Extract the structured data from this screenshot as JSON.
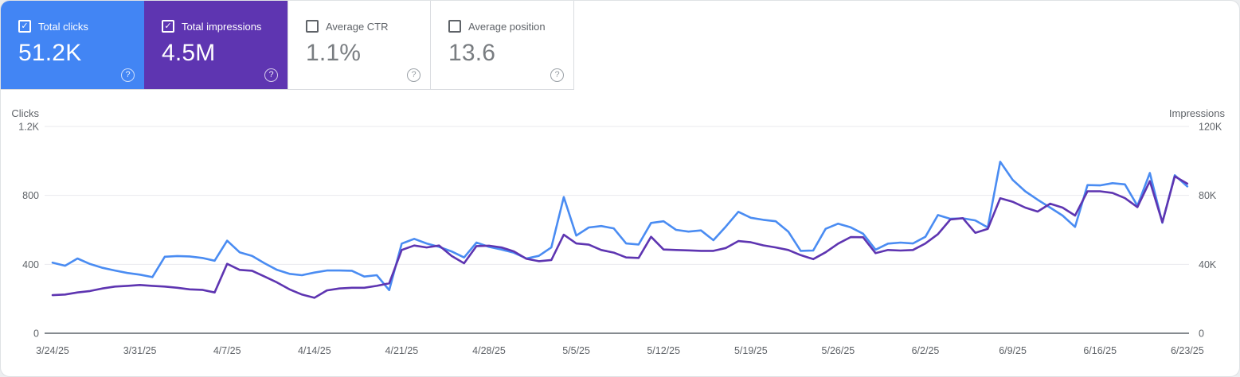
{
  "icons": {
    "help": "?",
    "check": "✓"
  },
  "cards": [
    {
      "label": "Total clicks",
      "value": "51.2K",
      "checked": true,
      "selected": true,
      "bg": "#4285f4"
    },
    {
      "label": "Total impressions",
      "value": "4.5M",
      "checked": true,
      "selected": true,
      "bg": "#5e35b1"
    },
    {
      "label": "Average CTR",
      "value": "1.1%",
      "checked": false,
      "selected": false,
      "bg": ""
    },
    {
      "label": "Average position",
      "value": "13.6",
      "checked": false,
      "selected": false,
      "bg": ""
    }
  ],
  "chart_data": {
    "type": "line",
    "points": 92,
    "x_start": "3/24/25",
    "x_end": "6/23/25",
    "x_tick_days": [
      0,
      7,
      14,
      21,
      28,
      35,
      42,
      49,
      56,
      63,
      70,
      77,
      84,
      91
    ],
    "x_tick_labels": [
      "3/24/25",
      "3/31/25",
      "4/7/25",
      "4/14/25",
      "4/21/25",
      "4/28/25",
      "5/5/25",
      "5/12/25",
      "5/19/25",
      "5/26/25",
      "6/2/25",
      "6/9/25",
      "6/16/25",
      "6/23/25"
    ],
    "grid": true,
    "legend": "none",
    "left_axis": {
      "label": "Clicks",
      "max": 1200,
      "ticks": [
        "0",
        "400",
        "800",
        "1.2K"
      ]
    },
    "right_axis": {
      "label": "Impressions",
      "max": 120000,
      "ticks": [
        "0",
        "40K",
        "80K",
        "120K"
      ]
    },
    "series": [
      {
        "name": "Clicks",
        "axis": "left",
        "color": "#4a8cf2",
        "values": [
          410,
          392,
          434,
          402,
          380,
          364,
          350,
          340,
          326,
          444,
          448,
          446,
          437,
          421,
          537,
          470,
          449,
          406,
          368,
          345,
          337,
          352,
          364,
          364,
          363,
          329,
          337,
          250,
          520,
          548,
          521,
          501,
          475,
          440,
          526,
          501,
          486,
          467,
          434,
          449,
          498,
          790,
          567,
          614,
          622,
          609,
          521,
          515,
          640,
          650,
          600,
          590,
          597,
          540,
          620,
          705,
          670,
          658,
          650,
          590,
          478,
          480,
          606,
          636,
          615,
          578,
          485,
          520,
          526,
          521,
          560,
          686,
          664,
          667,
          655,
          614,
          995,
          890,
          824,
          775,
          729,
          683,
          617,
          860,
          858,
          871,
          864,
          740,
          930,
          641,
          917,
          852
        ]
      },
      {
        "name": "Impressions",
        "axis": "right",
        "color": "#5e35b1",
        "values": [
          22100,
          22500,
          23700,
          24500,
          26000,
          27100,
          27500,
          28000,
          27500,
          27100,
          26400,
          25500,
          25200,
          23700,
          40300,
          36800,
          36300,
          32900,
          29500,
          25500,
          22500,
          20600,
          24900,
          26000,
          26400,
          26400,
          27500,
          29000,
          48300,
          50900,
          49800,
          50900,
          44900,
          40600,
          50600,
          50800,
          49800,
          47500,
          43200,
          41800,
          42500,
          57200,
          52100,
          51400,
          48300,
          46800,
          44000,
          43700,
          56000,
          48600,
          48300,
          48100,
          47800,
          47800,
          49500,
          53500,
          52800,
          51000,
          49800,
          48300,
          45300,
          43000,
          47000,
          52000,
          55800,
          55700,
          46500,
          48300,
          48000,
          48300,
          52100,
          57500,
          66000,
          66800,
          58300,
          60600,
          78300,
          76300,
          72900,
          70600,
          75200,
          72900,
          68300,
          82400,
          82400,
          81400,
          78400,
          73200,
          88300,
          64400,
          91000,
          86800
        ]
      }
    ]
  }
}
